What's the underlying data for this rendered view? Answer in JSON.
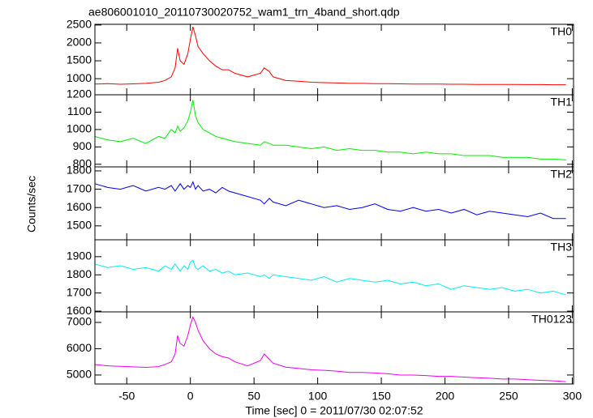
{
  "chart_data": [
    {
      "type": "line",
      "title": "ae806001010_20110730020752_wam1_trn_4band_short.qdp",
      "label": "TH0",
      "color": "#ff0000",
      "x": [
        -75,
        -65,
        -55,
        -45,
        -35,
        -25,
        -20,
        -15,
        -12,
        -10,
        -8,
        -5,
        -2,
        0,
        2,
        4,
        6,
        10,
        15,
        20,
        25,
        30,
        35,
        45,
        55,
        58,
        62,
        65,
        75,
        85,
        95,
        105,
        115,
        125,
        135,
        145,
        155,
        165,
        175,
        185,
        195,
        205,
        215,
        225,
        235,
        245,
        255,
        265,
        275,
        285,
        295
      ],
      "values": [
        850,
        860,
        845,
        855,
        870,
        900,
        950,
        1050,
        1300,
        1850,
        1500,
        1400,
        1700,
        2100,
        2450,
        2200,
        1900,
        1700,
        1500,
        1350,
        1250,
        1250,
        1150,
        1050,
        1150,
        1300,
        1200,
        1050,
        950,
        930,
        900,
        890,
        880,
        870,
        870,
        860,
        860,
        855,
        850,
        850,
        850,
        845,
        845,
        840,
        840,
        840,
        840,
        835,
        835,
        830,
        830
      ],
      "xlim": [
        -75,
        301
      ],
      "ylim": [
        550,
        2520
      ],
      "yticks": [
        1000,
        1500,
        2000,
        2500
      ]
    },
    {
      "type": "line",
      "label": "TH1",
      "color": "#00ee00",
      "x": [
        -75,
        -65,
        -55,
        -45,
        -35,
        -25,
        -20,
        -15,
        -12,
        -10,
        -8,
        -5,
        -2,
        0,
        2,
        4,
        6,
        10,
        15,
        20,
        25,
        30,
        35,
        45,
        55,
        58,
        62,
        65,
        75,
        85,
        95,
        105,
        115,
        125,
        135,
        145,
        155,
        165,
        175,
        185,
        195,
        205,
        215,
        225,
        235,
        245,
        255,
        265,
        275,
        285,
        295
      ],
      "values": [
        960,
        940,
        930,
        950,
        920,
        960,
        950,
        1000,
        980,
        1020,
        990,
        1010,
        1050,
        1100,
        1170,
        1080,
        1040,
        1000,
        980,
        960,
        950,
        940,
        930,
        920,
        910,
        930,
        920,
        910,
        910,
        900,
        890,
        900,
        880,
        890,
        880,
        880,
        870,
        870,
        860,
        870,
        860,
        860,
        850,
        850,
        850,
        840,
        840,
        840,
        830,
        830,
        825
      ],
      "xlim": [
        -75,
        301
      ],
      "ylim": [
        785,
        1200
      ],
      "yticks": [
        800,
        900,
        1000,
        1100,
        1200
      ]
    },
    {
      "type": "line",
      "label": "TH2",
      "color": "#0000ee",
      "y_label": "Counts/sec",
      "x": [
        -75,
        -65,
        -55,
        -45,
        -35,
        -25,
        -20,
        -15,
        -12,
        -10,
        -8,
        -5,
        -2,
        0,
        2,
        4,
        6,
        10,
        15,
        20,
        25,
        30,
        35,
        45,
        55,
        58,
        62,
        65,
        75,
        85,
        95,
        105,
        115,
        125,
        135,
        145,
        155,
        165,
        175,
        185,
        195,
        205,
        215,
        225,
        235,
        245,
        255,
        265,
        275,
        285,
        295
      ],
      "values": [
        1730,
        1710,
        1700,
        1720,
        1690,
        1710,
        1700,
        1720,
        1690,
        1710,
        1730,
        1700,
        1720,
        1710,
        1740,
        1700,
        1720,
        1690,
        1700,
        1680,
        1710,
        1690,
        1680,
        1660,
        1640,
        1620,
        1650,
        1630,
        1610,
        1640,
        1620,
        1600,
        1610,
        1590,
        1600,
        1620,
        1590,
        1580,
        1600,
        1580,
        1590,
        1570,
        1590,
        1560,
        1580,
        1570,
        1560,
        1550,
        1570,
        1540,
        1540
      ],
      "xlim": [
        -75,
        301
      ],
      "ylim": [
        1424,
        1822
      ],
      "yticks": [
        1500,
        1600,
        1700,
        1800
      ]
    },
    {
      "type": "line",
      "label": "TH3",
      "color": "#00eeee",
      "x": [
        -75,
        -65,
        -55,
        -45,
        -35,
        -25,
        -20,
        -15,
        -12,
        -10,
        -8,
        -5,
        -2,
        0,
        2,
        4,
        6,
        10,
        15,
        20,
        25,
        30,
        35,
        45,
        55,
        58,
        62,
        65,
        75,
        85,
        95,
        105,
        115,
        125,
        135,
        145,
        155,
        165,
        175,
        185,
        195,
        205,
        215,
        225,
        235,
        245,
        255,
        265,
        275,
        285,
        295
      ],
      "values": [
        1860,
        1840,
        1850,
        1830,
        1840,
        1820,
        1850,
        1830,
        1860,
        1840,
        1820,
        1850,
        1830,
        1870,
        1880,
        1840,
        1830,
        1850,
        1820,
        1830,
        1810,
        1820,
        1800,
        1810,
        1790,
        1800,
        1780,
        1800,
        1790,
        1780,
        1770,
        1790,
        1760,
        1780,
        1770,
        1760,
        1770,
        1750,
        1760,
        1740,
        1750,
        1720,
        1740,
        1730,
        1720,
        1730,
        1710,
        1720,
        1700,
        1710,
        1690
      ],
      "xlim": [
        -75,
        301
      ],
      "ylim": [
        1596,
        1993
      ],
      "yticks": [
        1600,
        1700,
        1800,
        1900
      ]
    },
    {
      "type": "line",
      "label": "TH0123",
      "color": "#ee00ee",
      "x_label": "Time [sec] 0 = 2011/07/30 02:07:52",
      "x": [
        -75,
        -65,
        -55,
        -45,
        -35,
        -25,
        -20,
        -15,
        -12,
        -10,
        -8,
        -5,
        -2,
        0,
        2,
        4,
        6,
        10,
        15,
        20,
        25,
        30,
        35,
        45,
        55,
        58,
        62,
        65,
        75,
        85,
        95,
        105,
        115,
        125,
        135,
        145,
        155,
        165,
        175,
        185,
        195,
        205,
        215,
        225,
        235,
        245,
        255,
        265,
        275,
        285,
        295
      ],
      "values": [
        5400,
        5350,
        5330,
        5310,
        5290,
        5320,
        5400,
        5500,
        5800,
        6500,
        6200,
        6100,
        6500,
        6900,
        7200,
        7000,
        6700,
        6300,
        6000,
        5800,
        5700,
        5650,
        5500,
        5350,
        5550,
        5800,
        5600,
        5450,
        5300,
        5250,
        5200,
        5180,
        5150,
        5100,
        5100,
        5080,
        5050,
        5000,
        5000,
        4980,
        4950,
        4950,
        4920,
        4900,
        4880,
        4850,
        4850,
        4820,
        4800,
        4780,
        4750
      ],
      "xlim": [
        -75,
        301
      ],
      "ylim": [
        4660,
        7400
      ],
      "yticks": [
        5000,
        6000,
        7000
      ],
      "xticks": [
        -50,
        0,
        50,
        100,
        150,
        200,
        250,
        300
      ]
    }
  ]
}
